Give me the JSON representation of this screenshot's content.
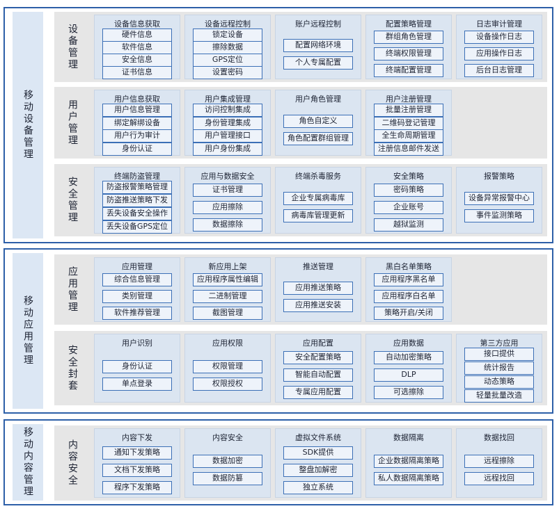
{
  "sections": [
    {
      "title": "移动设备管理",
      "groups": [
        {
          "title": "设备管理",
          "modules": [
            {
              "title": "设备信息获取",
              "items": [
                "硬件信息",
                "软件信息",
                "安全信息",
                "证书信息"
              ]
            },
            {
              "title": "设备远程控制",
              "items": [
                "锁定设备",
                "擦除数据",
                "GPS定位",
                "设置密码"
              ]
            },
            {
              "title": "账户远程控制",
              "items": [
                "配置网络环境",
                "个人专属配置"
              ]
            },
            {
              "title": "配置策略管理",
              "items": [
                "群组角色管理",
                "终端权限管理",
                "终端配置管理"
              ]
            },
            {
              "title": "日志审计管理",
              "items": [
                "设备操作日志",
                "应用操作日志",
                "后台日志管理"
              ]
            }
          ]
        },
        {
          "title": "用户管理",
          "modules": [
            {
              "title": "用户信息获取",
              "items": [
                "用户信息管理",
                "绑定解绑设备",
                "用户行为审计",
                "身份认证"
              ]
            },
            {
              "title": "用户集成管理",
              "items": [
                "访问控制集成",
                "身份管理集成",
                "用户管理接口",
                "用户身份集成"
              ]
            },
            {
              "title": "用户角色管理",
              "items": [
                "角色自定义",
                "角色配置群组管理"
              ]
            },
            {
              "title": "用户注册管理",
              "items": [
                "批量注册管理",
                "二维码登记管理",
                "全生命周期管理",
                "注册信息邮件发送"
              ]
            }
          ]
        },
        {
          "title": "安全管理",
          "modules": [
            {
              "title": "终端防盗管理",
              "items": [
                "防盗报警策略管理",
                "防盗推送策略下发",
                "丢失设备安全操作",
                "丢失设备GPS定位"
              ]
            },
            {
              "title": "应用与数据安全",
              "items": [
                "证书管理",
                "应用擦除",
                "数据擦除"
              ]
            },
            {
              "title": "终端杀毒服务",
              "items": [
                "企业专属病毒库",
                "病毒库管理更新"
              ]
            },
            {
              "title": "安全策略",
              "items": [
                "密码策略",
                "企业账号",
                "越狱监测"
              ]
            },
            {
              "title": "报警策略",
              "items": [
                "设备异常报警中心",
                "事件监测策略"
              ]
            }
          ]
        }
      ]
    },
    {
      "title": "移动应用管理",
      "groups": [
        {
          "title": "应用管理",
          "modules": [
            {
              "title": "应用管理",
              "items": [
                "综合信息管理",
                "类别管理",
                "软件推荐管理"
              ]
            },
            {
              "title": "新应用上架",
              "items": [
                "应用程序属性编辑",
                "二进制管理",
                "截图管理"
              ]
            },
            {
              "title": "推送管理",
              "items": [
                "应用推送策略",
                "应用推送安装"
              ]
            },
            {
              "title": "黑白名单策略",
              "items": [
                "应用程序黑名单",
                "应用程序白名单",
                "策略开启/关闭"
              ]
            }
          ]
        },
        {
          "title": "安全封套",
          "modules": [
            {
              "title": "用户识别",
              "items": [
                "身份认证",
                "单点登录"
              ]
            },
            {
              "title": "应用权限",
              "items": [
                "权限管理",
                "权限授权"
              ]
            },
            {
              "title": "应用配置",
              "items": [
                "安全配置策略",
                "智能自动配置",
                "专属应用配置"
              ]
            },
            {
              "title": "应用数据",
              "items": [
                "自动加密策略",
                "DLP",
                "可选擦除"
              ]
            },
            {
              "title": "第三方应用",
              "items": [
                "接口提供",
                "统计报告",
                "动态策略",
                "轻量批量改造"
              ]
            }
          ]
        }
      ]
    },
    {
      "title": "移动内容管理",
      "groups": [
        {
          "title": "内容安全",
          "modules": [
            {
              "title": "内容下发",
              "items": [
                "通知下发策略",
                "文档下发策略",
                "程序下发策略"
              ]
            },
            {
              "title": "内容安全",
              "items": [
                "数据加密",
                "数据防篡"
              ]
            },
            {
              "title": "虚拟文件系统",
              "items": [
                "SDK提供",
                "整盘加解密",
                "独立系统"
              ]
            },
            {
              "title": "数据隔离",
              "items": [
                "企业数据隔离策略",
                "私人数据隔离策略"
              ]
            },
            {
              "title": "数据找回",
              "items": [
                "远程擦除",
                "远程找回"
              ]
            }
          ]
        }
      ]
    }
  ]
}
